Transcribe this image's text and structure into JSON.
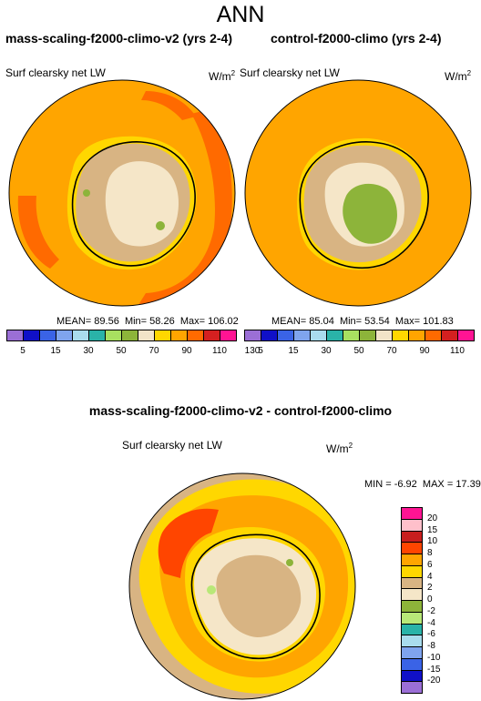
{
  "figure": {
    "title": "ANN"
  },
  "panels": [
    {
      "id": "left",
      "title": "mass-scaling-f2000-climo-v2 (yrs 2-4)",
      "variable": "Surf clearsky net LW",
      "units_base": "W/m",
      "units_sup": "2",
      "stats": {
        "mean_label": "MEAN=",
        "mean": "89.56",
        "min_label": "Min=",
        "min": "58.26",
        "max_label": "Max=",
        "max": "106.02"
      }
    },
    {
      "id": "right",
      "title": "control-f2000-climo (yrs 2-4)",
      "variable": "Surf clearsky net LW",
      "units_base": "W/m",
      "units_sup": "2",
      "stats": {
        "mean_label": "MEAN=",
        "mean": "85.04",
        "min_label": "Min=",
        "min": "53.54",
        "max_label": "Max=",
        "max": "101.83"
      }
    },
    {
      "id": "diff",
      "title": "mass-scaling-f2000-climo-v2 - control-f2000-climo",
      "variable": "Surf clearsky net LW",
      "units_base": "W/m",
      "units_sup": "2",
      "stats": {
        "min_label": "MIN =",
        "min": "-6.92",
        "max_label": "MAX =",
        "max": "17.39"
      }
    }
  ],
  "colorbar_abs": {
    "colors": [
      "#9b6fd6",
      "#1010c8",
      "#3a63e6",
      "#7fa4ee",
      "#a9dced",
      "#2ab3a8",
      "#a8e060",
      "#8db43a",
      "#f2e4c8",
      "#ffd700",
      "#ffa500",
      "#ff6a00",
      "#d42020",
      "#ff1493"
    ],
    "labels": [
      "5",
      "15",
      "30",
      "50",
      "70",
      "90",
      "110",
      "130"
    ]
  },
  "colorbar_diff": {
    "colors": [
      "#ff1493",
      "#ffc0cb",
      "#c81e1e",
      "#ff4500",
      "#ffa500",
      "#ffd700",
      "#d8b483",
      "#f5e6c8",
      "#8db43a",
      "#b8e878",
      "#2ab3a8",
      "#a9dced",
      "#7fa4ee",
      "#3a63e6",
      "#1010c8",
      "#9b6fd6"
    ],
    "labels": [
      "20",
      "15",
      "10",
      "8",
      "6",
      "4",
      "2",
      "0",
      "-2",
      "-4",
      "-6",
      "-8",
      "-10",
      "-15",
      "-20"
    ]
  }
}
